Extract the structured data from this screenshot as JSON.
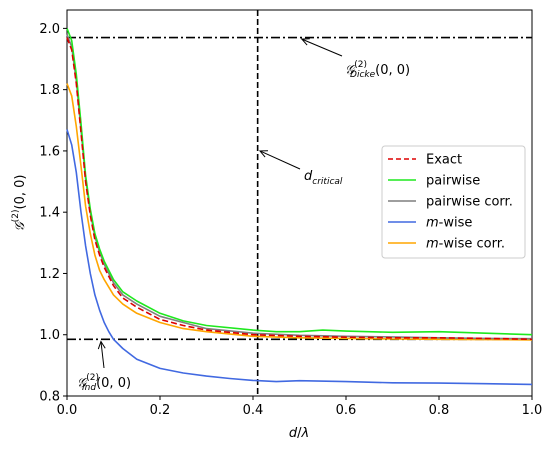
{
  "chart_data": {
    "type": "line",
    "xlabel": "d/λ",
    "ylabel": "𝒢(2)(0,0)",
    "xlim": [
      0,
      1.0
    ],
    "ylim": [
      0.8,
      2.06
    ],
    "x_ticks": [
      "0.0",
      "0.2",
      "0.4",
      "0.6",
      "0.8",
      "1.0"
    ],
    "y_ticks": [
      "0.8",
      "1.0",
      "1.2",
      "1.4",
      "1.6",
      "1.8",
      "2.0"
    ],
    "legend_position": "center-right",
    "series": [
      {
        "name": "Exact",
        "color": "#dd0000",
        "style": "dashed",
        "x": [
          0.0,
          0.01,
          0.02,
          0.03,
          0.04,
          0.05,
          0.06,
          0.07,
          0.08,
          0.1,
          0.12,
          0.15,
          0.2,
          0.25,
          0.3,
          0.4,
          0.5,
          0.6,
          0.7,
          0.8,
          0.9,
          1.0
        ],
        "y": [
          1.97,
          1.93,
          1.82,
          1.66,
          1.5,
          1.39,
          1.31,
          1.26,
          1.22,
          1.16,
          1.12,
          1.09,
          1.05,
          1.03,
          1.015,
          1.0,
          0.995,
          0.992,
          0.99,
          0.99,
          0.988,
          0.985
        ]
      },
      {
        "name": "pairwise",
        "color": "#1ee81e",
        "style": "solid",
        "x": [
          0.0,
          0.01,
          0.02,
          0.03,
          0.04,
          0.05,
          0.06,
          0.07,
          0.08,
          0.1,
          0.12,
          0.15,
          0.2,
          0.25,
          0.3,
          0.4,
          0.45,
          0.48,
          0.5,
          0.55,
          0.6,
          0.7,
          0.8,
          0.9,
          1.0
        ],
        "y": [
          2.0,
          1.96,
          1.85,
          1.69,
          1.52,
          1.41,
          1.33,
          1.28,
          1.24,
          1.18,
          1.14,
          1.11,
          1.07,
          1.045,
          1.03,
          1.015,
          1.01,
          1.01,
          1.01,
          1.015,
          1.012,
          1.008,
          1.01,
          1.005,
          1.0
        ]
      },
      {
        "name": "pairwise corr.",
        "color": "#7f7f7f",
        "style": "solid",
        "x": [
          0.0,
          0.01,
          0.02,
          0.03,
          0.04,
          0.05,
          0.06,
          0.07,
          0.08,
          0.1,
          0.12,
          0.15,
          0.2,
          0.25,
          0.3,
          0.4,
          0.5,
          0.6,
          0.7,
          0.8,
          0.9,
          1.0
        ],
        "y": [
          1.98,
          1.94,
          1.83,
          1.67,
          1.51,
          1.4,
          1.32,
          1.27,
          1.23,
          1.17,
          1.13,
          1.1,
          1.06,
          1.04,
          1.02,
          1.005,
          0.998,
          0.995,
          0.993,
          0.99,
          0.988,
          0.987
        ]
      },
      {
        "name": "m-wise",
        "color": "#4169e1",
        "style": "solid",
        "x": [
          0.0,
          0.01,
          0.02,
          0.03,
          0.04,
          0.05,
          0.06,
          0.07,
          0.08,
          0.09,
          0.1,
          0.12,
          0.15,
          0.2,
          0.25,
          0.3,
          0.35,
          0.4,
          0.45,
          0.5,
          0.6,
          0.7,
          0.8,
          0.9,
          1.0
        ],
        "y": [
          1.67,
          1.62,
          1.53,
          1.4,
          1.29,
          1.2,
          1.13,
          1.08,
          1.04,
          1.01,
          0.985,
          0.955,
          0.92,
          0.89,
          0.875,
          0.865,
          0.857,
          0.851,
          0.847,
          0.85,
          0.847,
          0.843,
          0.842,
          0.84,
          0.838
        ]
      },
      {
        "name": "m-wise corr.",
        "color": "#ffa500",
        "style": "solid",
        "x": [
          0.0,
          0.01,
          0.02,
          0.03,
          0.04,
          0.05,
          0.06,
          0.07,
          0.08,
          0.1,
          0.12,
          0.15,
          0.2,
          0.25,
          0.3,
          0.4,
          0.5,
          0.6,
          0.7,
          0.8,
          0.9,
          1.0
        ],
        "y": [
          1.82,
          1.78,
          1.68,
          1.55,
          1.42,
          1.33,
          1.26,
          1.21,
          1.18,
          1.13,
          1.1,
          1.07,
          1.04,
          1.02,
          1.01,
          0.995,
          0.99,
          0.988,
          0.986,
          0.985,
          0.984,
          0.983
        ]
      }
    ],
    "reference_lines": [
      {
        "orientation": "horizontal",
        "value": 1.97,
        "style": "dashdot",
        "color": "#000000"
      },
      {
        "orientation": "horizontal",
        "value": 0.985,
        "style": "dashdot",
        "color": "#000000"
      },
      {
        "orientation": "vertical",
        "value": 0.41,
        "style": "dashed",
        "color": "#000000"
      }
    ],
    "annotations": [
      {
        "text": "𝒢(2)Dicke(0,0)",
        "target": [
          0.5,
          1.97
        ],
        "text_pos": [
          0.6,
          1.85
        ]
      },
      {
        "text": "d critical",
        "target": [
          0.41,
          1.6
        ],
        "text_pos": [
          0.51,
          1.5
        ]
      },
      {
        "text": "𝒢(2)Ind(0,0)",
        "target": [
          0.075,
          0.985
        ],
        "text_pos": [
          0.025,
          0.83
        ]
      }
    ]
  },
  "labels": {
    "xlabel_main": "d",
    "xlabel_slash": "/",
    "xlabel_lambda": "λ",
    "ylabel_main": "𝒢",
    "ylabel_sup": "(2)",
    "ylabel_args": "(0, 0)",
    "annot_dicke_main": "𝒢",
    "annot_dicke_sup": "(2)",
    "annot_dicke_sub": "Dicke",
    "annot_dicke_args": "(0, 0)",
    "annot_dcrit_main": "d",
    "annot_dcrit_sub": "critical",
    "annot_ind_main": "𝒢",
    "annot_ind_sup": "(2)",
    "annot_ind_sub": "Ind",
    "annot_ind_args": "(0, 0)"
  }
}
